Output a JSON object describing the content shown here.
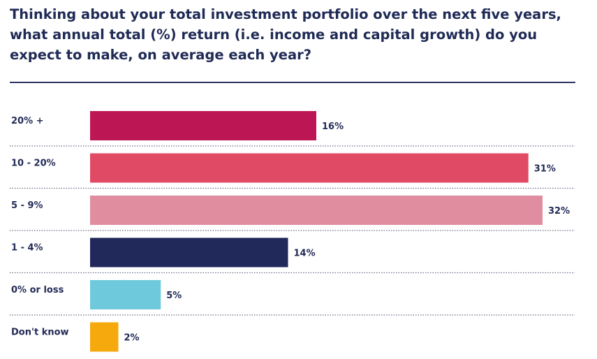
{
  "chart_data": {
    "type": "bar",
    "orientation": "horizontal",
    "title": "Thinking about your total investment portfolio over the next five years, what annual total (%) return (i.e. income and capital growth) do you expect to make, on average each year?",
    "categories": [
      "20% +",
      "10 - 20%",
      "5 - 9%",
      "1 - 4%",
      "0% or loss",
      "Don't know"
    ],
    "values": [
      16,
      31,
      32,
      14,
      5,
      2
    ],
    "value_labels": [
      "16%",
      "31%",
      "32%",
      "14%",
      "5%",
      "2%"
    ],
    "colors": [
      "#bd1655",
      "#e04a65",
      "#e08d9f",
      "#21285a",
      "#6ec9dd",
      "#f6a90c"
    ],
    "xlim": [
      0,
      32
    ],
    "grid": false,
    "legend": "none"
  }
}
